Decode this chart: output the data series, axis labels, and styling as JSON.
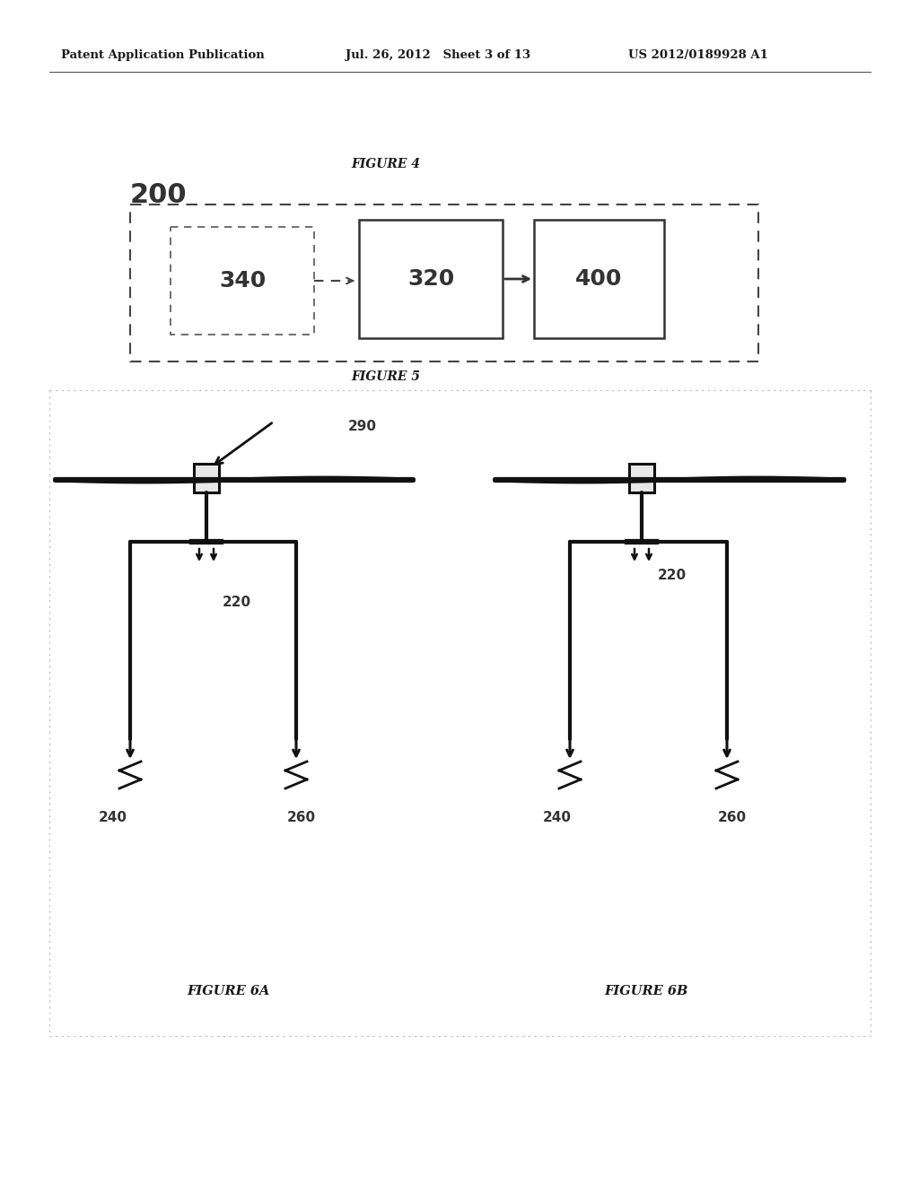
{
  "bg_color": "#ffffff",
  "header_text_left": "Patent Application Publication",
  "header_text_mid": "Jul. 26, 2012   Sheet 3 of 13",
  "header_text_right": "US 2012/0189928 A1",
  "figure4_label": "FIGURE 4",
  "figure5_label": "FIGURE 5",
  "figure6a_label": "FIGURE 6A",
  "figure6b_label": "FIGURE 6B",
  "label_200": "200",
  "label_340": "340",
  "label_320": "320",
  "label_400": "400",
  "label_290": "290",
  "label_220a": "220",
  "label_240a": "240",
  "label_260a": "260",
  "label_220b": "220",
  "label_240b": "240",
  "label_260b": "260"
}
